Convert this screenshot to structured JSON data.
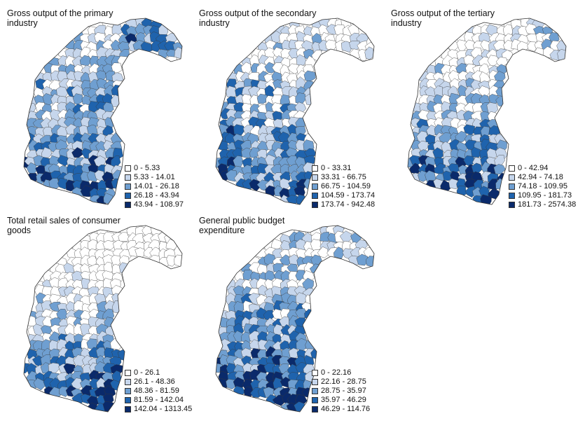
{
  "palette": [
    "#ffffff",
    "#c6d6ec",
    "#6f9fd1",
    "#1f63ad",
    "#0a2a6b"
  ],
  "panels": [
    {
      "title": "Gross output of the primary industry",
      "legend": [
        "0 - 5.33",
        "5.33 - 14.01",
        "14.01 - 26.18",
        "26.18 - 43.94",
        "43.94 - 108.97"
      ]
    },
    {
      "title": "Gross output of the secondary industry",
      "legend": [
        "0 - 33.31",
        "33.31 - 66.75",
        "66.75 - 104.59",
        "104.59 - 173.74",
        "173.74 - 942.48"
      ]
    },
    {
      "title": "Gross output of the tertiary industry",
      "legend": [
        "0 - 42.94",
        "42.94 - 74.18",
        "74.18 - 109.95",
        "109.95 - 181.73",
        "181.73 - 2574.38"
      ]
    },
    {
      "title": "Total retail sales of consumer goods",
      "legend": [
        "0 - 26.1",
        "26.1 - 48.36",
        "48.36 - 81.59",
        "81.59 - 142.04",
        "142.04 - 1313.45"
      ]
    },
    {
      "title": "General public budget expenditure",
      "legend": [
        "0 - 22.16",
        "22.16 - 28.75",
        "28.75 - 35.97",
        "35.97 - 46.29",
        "46.29 - 114.76"
      ]
    }
  ]
}
